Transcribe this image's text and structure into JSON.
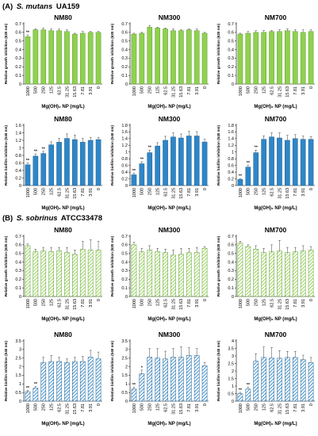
{
  "section_labels": [
    {
      "prefix": "(A)",
      "organism": "S. mutans",
      "strain": "UA159"
    },
    {
      "prefix": "(B)",
      "organism": "S. sobrinus",
      "strain": "ATCC33478"
    }
  ],
  "colors": {
    "green": "#8fd14f",
    "blue": "#2e86c8",
    "green_stroke": "#5e9a2c",
    "blue_stroke": "#1f5f8f",
    "error": "#444444",
    "sig": "#222222"
  },
  "chart_data": [
    {
      "type": "bar",
      "section": 0,
      "title": "NM80",
      "fill": "solid",
      "color": "green",
      "ylabel": "Relative growth inhibition (620 nm)",
      "xlabel": "Mg(OH)₂ NP (mg/L)",
      "categories": [
        "1000",
        "500",
        "250",
        "125",
        "62.5",
        "31.25",
        "15.63",
        "7.81",
        "3.91",
        "0"
      ],
      "ylim": [
        0,
        0.7
      ],
      "yticks": [
        "0",
        "0.1",
        "0.2",
        "0.3",
        "0.4",
        "0.5",
        "0.6",
        "0.7"
      ],
      "values": [
        0.55,
        0.63,
        0.63,
        0.62,
        0.62,
        0.61,
        0.58,
        0.59,
        0.6,
        0.6
      ],
      "errors": [
        0.02,
        0.01,
        0.02,
        0.02,
        0.02,
        0.02,
        0.01,
        0.02,
        0.01,
        0.01
      ],
      "sig": [
        "**",
        "",
        "",
        "",
        "",
        "",
        "",
        "",
        "",
        ""
      ]
    },
    {
      "type": "bar",
      "section": 0,
      "title": "NM300",
      "fill": "solid",
      "color": "green",
      "ylabel": "Relative growth inhibition (620 nm)",
      "xlabel": "Mg(OH)₂ NP (mg/L)",
      "categories": [
        "1000",
        "500",
        "250",
        "125",
        "62.5",
        "31.25",
        "15.63",
        "7.81",
        "3.91",
        "0"
      ],
      "ylim": [
        0,
        0.7
      ],
      "yticks": [
        "0",
        "0.1",
        "0.2",
        "0.3",
        "0.4",
        "0.5",
        "0.6",
        "0.7"
      ],
      "values": [
        0.58,
        0.59,
        0.66,
        0.65,
        0.64,
        0.62,
        0.62,
        0.63,
        0.62,
        0.59
      ],
      "errors": [
        0.01,
        0.01,
        0.02,
        0.01,
        0.01,
        0.02,
        0.01,
        0.01,
        0.02,
        0.01
      ],
      "sig": [
        "",
        "",
        "",
        "",
        "",
        "",
        "",
        "",
        "",
        ""
      ]
    },
    {
      "type": "bar",
      "section": 0,
      "title": "NM700",
      "fill": "solid",
      "color": "green",
      "ylabel": "Relative growth inhibition (620 nm)",
      "xlabel": "Mg(OH)₂ NP (mg/L)",
      "categories": [
        "1000",
        "500",
        "250",
        "125",
        "62.5",
        "31.25",
        "15.63",
        "7.81",
        "3.91",
        "0"
      ],
      "ylim": [
        0,
        0.7
      ],
      "yticks": [
        "0",
        "0.1",
        "0.2",
        "0.3",
        "0.4",
        "0.5",
        "0.6",
        "0.7"
      ],
      "values": [
        0.58,
        0.59,
        0.6,
        0.6,
        0.61,
        0.61,
        0.62,
        0.61,
        0.6,
        0.61
      ],
      "errors": [
        0.01,
        0.02,
        0.02,
        0.02,
        0.01,
        0.02,
        0.02,
        0.02,
        0.03,
        0.02
      ],
      "sig": [
        "",
        "",
        "",
        "",
        "",
        "",
        "",
        "",
        "",
        ""
      ]
    },
    {
      "type": "bar",
      "section": 0,
      "title": "NM80",
      "fill": "solid",
      "color": "blue",
      "ylabel": "Relative biofilm inhibition (540 nm)",
      "xlabel": "Mg(OH)₂ NP (mg/L)",
      "categories": [
        "1000",
        "500",
        "250",
        "125",
        "62.5",
        "31.25",
        "15.63",
        "7.81",
        "3.91",
        "0"
      ],
      "ylim": [
        0,
        1.6
      ],
      "yticks": [
        "0",
        "0.2",
        "0.4",
        "0.6",
        "0.8",
        "1",
        "1.2",
        "1.4",
        "1.6"
      ],
      "values": [
        0.55,
        0.78,
        0.85,
        1.08,
        1.15,
        1.25,
        1.22,
        1.15,
        1.2,
        1.22
      ],
      "errors": [
        0.05,
        0.06,
        0.06,
        0.08,
        0.1,
        0.12,
        0.12,
        0.1,
        0.08,
        0.06
      ],
      "sig": [
        "**",
        "**",
        "**",
        "",
        "",
        "",
        "",
        "",
        "",
        ""
      ]
    },
    {
      "type": "bar",
      "section": 0,
      "title": "NM300",
      "fill": "solid",
      "color": "blue",
      "ylabel": "Relative biofilm inhibition (540 nm)",
      "xlabel": "Mg(OH)₂ NP (mg/L)",
      "categories": [
        "1000",
        "500",
        "250",
        "125",
        "62.5",
        "31.25",
        "15.63",
        "7.81",
        "3.91",
        "0"
      ],
      "ylim": [
        0,
        1.8
      ],
      "yticks": [
        "0",
        "0.2",
        "0.4",
        "0.6",
        "0.8",
        "1",
        "1.2",
        "1.4",
        "1.6",
        "1.8"
      ],
      "values": [
        0.32,
        0.65,
        0.98,
        1.18,
        1.35,
        1.45,
        1.42,
        1.48,
        1.48,
        1.3
      ],
      "errors": [
        0.05,
        0.06,
        0.08,
        0.1,
        0.12,
        0.12,
        0.12,
        0.14,
        0.13,
        0.08
      ],
      "sig": [
        "**",
        "**",
        "**",
        "",
        "",
        "",
        "",
        "",
        "",
        ""
      ]
    },
    {
      "type": "bar",
      "section": 0,
      "title": "NM700",
      "fill": "solid",
      "color": "blue",
      "ylabel": "Relative biofilm inhibition (540 nm)",
      "xlabel": "Mg(OH)₂ NP (mg/L)",
      "categories": [
        "1000",
        "500",
        "250",
        "125",
        "62.5",
        "31.25",
        "15.63",
        "7.81",
        "3.91",
        "0"
      ],
      "ylim": [
        0,
        1.8
      ],
      "yticks": [
        "0",
        "0.2",
        "0.4",
        "0.6",
        "0.8",
        "1",
        "1.2",
        "1.4",
        "1.6",
        "1.8"
      ],
      "values": [
        0.18,
        0.55,
        0.98,
        1.38,
        1.45,
        1.42,
        1.35,
        1.4,
        1.38,
        1.38
      ],
      "errors": [
        0.03,
        0.05,
        0.08,
        0.1,
        0.12,
        0.15,
        0.15,
        0.12,
        0.1,
        0.08
      ],
      "sig": [
        "**",
        "**",
        "**",
        "",
        "",
        "",
        "",
        "",
        "",
        ""
      ]
    },
    {
      "type": "bar",
      "section": 1,
      "title": "NM80",
      "fill": "hatched",
      "color": "green",
      "ylabel": "Relative growth inhibition (620 nm)",
      "xlabel": "Mg(OH)₂ NP (mg/L)",
      "categories": [
        "1000",
        "500",
        "250",
        "125",
        "62.5",
        "31.25",
        "15.63",
        "7.81",
        "3.91",
        "0"
      ],
      "ylim": [
        0,
        0.7
      ],
      "yticks": [
        "0",
        "0.1",
        "0.2",
        "0.3",
        "0.4",
        "0.5",
        "0.6",
        "0.7"
      ],
      "values": [
        0.59,
        0.52,
        0.53,
        0.52,
        0.53,
        0.51,
        0.49,
        0.55,
        0.54,
        0.54
      ],
      "errors": [
        0.02,
        0.03,
        0.04,
        0.05,
        0.04,
        0.06,
        0.05,
        0.09,
        0.12,
        0.1
      ],
      "sig": [
        "",
        "",
        "",
        "",
        "",
        "",
        "",
        "",
        "",
        ""
      ]
    },
    {
      "type": "bar",
      "section": 1,
      "title": "NM300",
      "fill": "hatched",
      "color": "green",
      "ylabel": "Relative growth inhibition (620 nm)",
      "xlabel": "Mg(OH)₂ NP (mg/L)",
      "categories": [
        "1000",
        "500",
        "250",
        "125",
        "62.5",
        "31.25",
        "15.63",
        "7.81",
        "3.91",
        "0"
      ],
      "ylim": [
        0,
        0.7
      ],
      "yticks": [
        "0",
        "0.1",
        "0.2",
        "0.3",
        "0.4",
        "0.5",
        "0.6",
        "0.7"
      ],
      "values": [
        0.6,
        0.52,
        0.54,
        0.52,
        0.51,
        0.48,
        0.49,
        0.51,
        0.51,
        0.56
      ],
      "errors": [
        0.03,
        0.04,
        0.05,
        0.04,
        0.04,
        0.06,
        0.07,
        0.05,
        0.06,
        0.02
      ],
      "sig": [
        "",
        "",
        "",
        "",
        "",
        "",
        "",
        "",
        "",
        ""
      ]
    },
    {
      "type": "bar",
      "section": 1,
      "title": "NM700",
      "fill": "hatched",
      "color": "green",
      "ylabel": "Relative growth inhibition (620 nm)",
      "xlabel": "Mg(OH)₂ NP (mg/L)",
      "categories": [
        "1000",
        "500",
        "250",
        "125",
        "62.5",
        "31.25",
        "15.63",
        "7.81",
        "3.91",
        "0"
      ],
      "ylim": [
        0,
        0.7
      ],
      "yticks": [
        "0",
        "0.1",
        "0.2",
        "0.3",
        "0.4",
        "0.5",
        "0.6",
        "0.7"
      ],
      "values": [
        0.62,
        0.58,
        0.55,
        0.51,
        0.52,
        0.53,
        0.51,
        0.52,
        0.53,
        0.54
      ],
      "errors": [
        0.02,
        0.02,
        0.04,
        0.05,
        0.08,
        0.12,
        0.06,
        0.05,
        0.06,
        0.04
      ],
      "sig": [
        "",
        "",
        "",
        "",
        "",
        "",
        "",
        "",
        "",
        ""
      ]
    },
    {
      "type": "bar",
      "section": 1,
      "title": "NM80",
      "fill": "hatched",
      "color": "blue",
      "ylabel": "Relative biofilm inhibition (540 nm)",
      "xlabel": "Mg(OH)₂ NP (mg/L)",
      "categories": [
        "1000",
        "500",
        "250",
        "125",
        "62.5",
        "31.25",
        "15.63",
        "7.81",
        "3.91",
        "0"
      ],
      "ylim": [
        0,
        3.5
      ],
      "yticks": [
        "0",
        "0.5",
        "1",
        "1.5",
        "2",
        "2.5",
        "3",
        "3.5"
      ],
      "values": [
        0.55,
        0.75,
        2.25,
        2.3,
        2.3,
        2.25,
        2.3,
        2.3,
        2.55,
        2.45
      ],
      "errors": [
        0.08,
        0.1,
        0.3,
        0.35,
        0.25,
        0.2,
        0.25,
        0.3,
        0.4,
        0.4
      ],
      "sig": [
        "**",
        "**",
        "",
        "",
        "",
        "",
        "",
        "",
        "",
        ""
      ]
    },
    {
      "type": "bar",
      "section": 1,
      "title": "NM300",
      "fill": "hatched",
      "color": "blue",
      "ylabel": "Relative biofilm inhibition (540 nm)",
      "xlabel": "Mg(OH)₂ NP (mg/L)",
      "categories": [
        "1000",
        "500",
        "250",
        "125",
        "62.5",
        "31.25",
        "15.63",
        "7.81",
        "3.91",
        "0"
      ],
      "ylim": [
        0,
        3.5
      ],
      "yticks": [
        "0",
        "0.5",
        "1",
        "1.5",
        "2",
        "2.5",
        "3",
        "3.5"
      ],
      "values": [
        0.7,
        1.6,
        2.55,
        2.5,
        2.45,
        2.55,
        2.55,
        2.65,
        2.65,
        2.05
      ],
      "errors": [
        0.1,
        0.2,
        0.5,
        0.55,
        0.45,
        0.5,
        0.6,
        0.45,
        0.4,
        0.2
      ],
      "sig": [
        "**",
        "*",
        "",
        "",
        "",
        "",
        "",
        "",
        "",
        ""
      ]
    },
    {
      "type": "bar",
      "section": 1,
      "title": "NM700",
      "fill": "hatched",
      "color": "blue",
      "ylabel": "Relative biofilm inhibition (540 nm)",
      "xlabel": "Mg(OH)₂ NP (mg/L)",
      "categories": [
        "1000",
        "500",
        "250",
        "125",
        "62.5",
        "31.25",
        "15.63",
        "7.81",
        "3.91",
        "0"
      ],
      "ylim": [
        0,
        4
      ],
      "yticks": [
        "0",
        "0.5",
        "1",
        "1.5",
        "2",
        "2.5",
        "3",
        "3.5",
        "4"
      ],
      "values": [
        0.5,
        0.8,
        2.65,
        2.9,
        2.85,
        2.85,
        2.9,
        2.9,
        2.75,
        2.55
      ],
      "errors": [
        0.08,
        0.12,
        0.5,
        0.7,
        0.7,
        0.5,
        0.4,
        0.4,
        0.3,
        0.35
      ],
      "sig": [
        "**",
        "**",
        "",
        "",
        "",
        "",
        "",
        "",
        "",
        ""
      ]
    }
  ]
}
